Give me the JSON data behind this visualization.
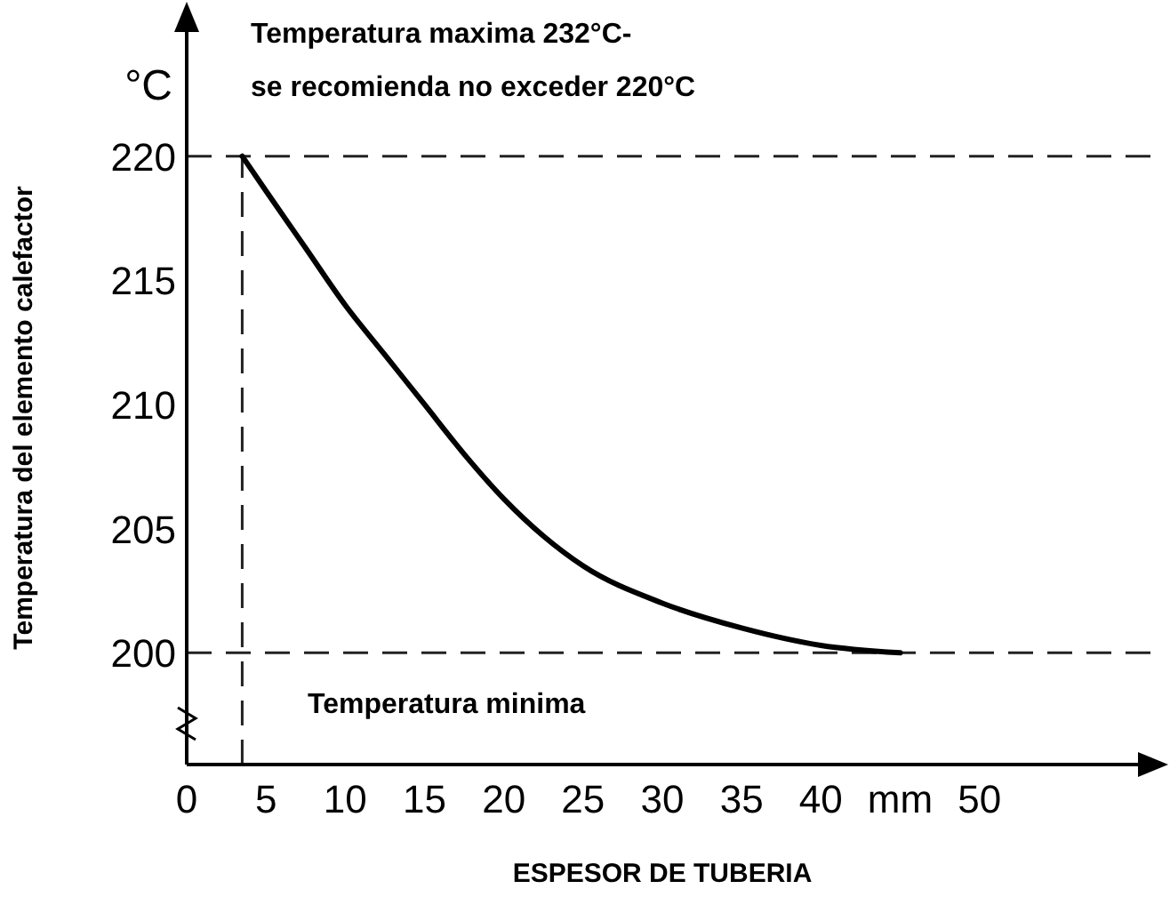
{
  "chart_data": {
    "type": "line",
    "xlabel": "ESPESOR DE TUBERIA",
    "ylabel": "Temperatura del elemento calefactor",
    "annotations": [
      "°C",
      "Temperatura maxima 232°C-",
      "se recomienda no exceder 220°C"
    ],
    "xlim": [
      0,
      60
    ],
    "ylim": [
      195.5,
      225
    ],
    "xticks": [
      0,
      5,
      10,
      15,
      20,
      25,
      30,
      35,
      40,
      {
        "value": 45,
        "label": "mm"
      },
      50
    ],
    "yticks": [
      200,
      205,
      210,
      215,
      220
    ],
    "grid": false,
    "marker": "none",
    "line_style": "solid",
    "ref_lines": [
      {
        "axis": "y",
        "value": 220,
        "label": null,
        "line_style": "dashed",
        "color": "#222222"
      },
      {
        "axis": "y",
        "value": 200,
        "label": "Temperatura minima",
        "line_style": "dashed",
        "color": "#222222"
      },
      {
        "axis": "x",
        "value": 3.5,
        "label": null,
        "line_style": "dashed",
        "color": "#222222"
      }
    ],
    "series": [
      {
        "color": "#000000",
        "x": [
          3.5,
          5,
          7.5,
          10,
          12.5,
          15,
          17.5,
          20,
          22.5,
          25,
          30,
          35,
          40,
          45
        ],
        "values": [
          220,
          218.6,
          216.3,
          214,
          212,
          210,
          208,
          206.2,
          204.7,
          203.5,
          202,
          201,
          200.3,
          200
        ]
      }
    ]
  }
}
